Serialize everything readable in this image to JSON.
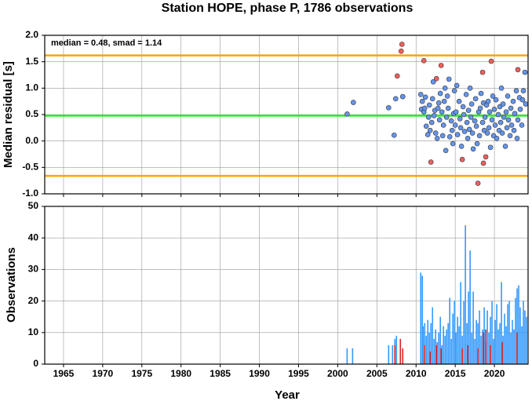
{
  "chart_data": [
    {
      "type": "scatter",
      "title": "Station HOPE, phase P, 1786 observations",
      "annotation": "median = 0.48, smad = 1.14",
      "ylabel": "Median residual [s]",
      "xlim": [
        1962.6,
        2024.3
      ],
      "ylim": [
        -1.0,
        2.0
      ],
      "xticks": [
        1965,
        1970,
        1975,
        1980,
        1985,
        1990,
        1995,
        2000,
        2005,
        2010,
        2015,
        2020
      ],
      "yticks": [
        {
          "value": -1.0,
          "label": "-1.0"
        },
        {
          "value": -0.5,
          "label": "-0.5"
        },
        {
          "value": 0.0,
          "label": "0.0"
        },
        {
          "value": 0.5,
          "label": "0.5"
        },
        {
          "value": 1.0,
          "label": "1.0"
        },
        {
          "value": 1.5,
          "label": "1.5"
        },
        {
          "value": 2.0,
          "label": "2.0"
        }
      ],
      "grid": true,
      "hlines": [
        {
          "value": 1.62,
          "color": "#ffa500"
        },
        {
          "value": -0.66,
          "color": "#ffa500"
        },
        {
          "value": 0.48,
          "color": "#22ee22"
        }
      ],
      "series": [
        {
          "color": "#6495ed",
          "x": [
            2001.2,
            2002.0,
            2006.5,
            2007.2,
            2007.4,
            2008.3,
            2010.6,
            2010.7,
            2010.8,
            2011.0,
            2011.1,
            2011.2,
            2011.3,
            2011.5,
            2011.6,
            2011.7,
            2011.8,
            2012.0,
            2012.1,
            2012.2,
            2012.3,
            2012.4,
            2012.5,
            2012.7,
            2012.8,
            2012.9,
            2013.0,
            2013.1,
            2013.3,
            2013.4,
            2013.5,
            2013.6,
            2013.7,
            2013.8,
            2013.9,
            2014.0,
            2014.1,
            2014.2,
            2014.3,
            2014.5,
            2014.6,
            2014.7,
            2014.8,
            2014.9,
            2015.0,
            2015.1,
            2015.2,
            2015.3,
            2015.5,
            2015.6,
            2015.7,
            2015.8,
            2016.0,
            2016.1,
            2016.2,
            2016.4,
            2016.5,
            2016.6,
            2016.7,
            2016.8,
            2016.9,
            2017.0,
            2017.1,
            2017.2,
            2017.3,
            2017.5,
            2017.6,
            2017.7,
            2017.8,
            2018.0,
            2018.1,
            2018.2,
            2018.3,
            2018.5,
            2018.6,
            2018.7,
            2018.8,
            2019.0,
            2019.1,
            2019.2,
            2019.3,
            2019.4,
            2019.5,
            2019.7,
            2019.8,
            2019.9,
            2020.0,
            2020.1,
            2020.2,
            2020.3,
            2020.5,
            2020.6,
            2020.7,
            2020.8,
            2020.9,
            2021.0,
            2021.1,
            2021.2,
            2021.4,
            2021.5,
            2021.6,
            2021.7,
            2021.8,
            2022.0,
            2022.1,
            2022.2,
            2022.4,
            2022.5,
            2022.6,
            2022.8,
            2022.9,
            2023.0,
            2023.2,
            2023.3,
            2023.5,
            2023.6,
            2023.7,
            2023.9,
            2024.0
          ],
          "values": [
            0.51,
            0.73,
            0.63,
            0.11,
            0.8,
            0.84,
            0.88,
            0.6,
            0.75,
            0.55,
            0.62,
            0.83,
            0.28,
            0.12,
            0.45,
            0.68,
            0.2,
            0.35,
            0.8,
            1.12,
            0.48,
            0.58,
            0.15,
            0.05,
            0.62,
            0.72,
            0.4,
            0.9,
            0.55,
            0.1,
            0.3,
            0.75,
            1.0,
            -0.18,
            0.45,
            0.85,
            0.62,
            1.17,
            0.08,
            0.38,
            0.2,
            -0.05,
            0.52,
            0.95,
            0.3,
            0.55,
            1.05,
            0.12,
            0.75,
            0.42,
            0.25,
            -0.1,
            0.65,
            0.5,
            0.18,
            0.88,
            0.35,
            0.05,
            0.58,
            0.22,
            1.0,
            0.45,
            0.7,
            0.15,
            -0.15,
            0.38,
            0.8,
            0.28,
            -0.05,
            0.55,
            0.1,
            0.62,
            0.9,
            0.35,
            0.72,
            0.2,
            0.45,
            0.68,
            0.15,
            0.75,
            0.25,
            0.55,
            -0.12,
            0.4,
            0.85,
            0.1,
            0.6,
            0.3,
            0.78,
            0.05,
            0.5,
            0.2,
            0.65,
            0.35,
            1.0,
            0.15,
            0.7,
            0.45,
            -0.1,
            0.55,
            0.25,
            0.85,
            0.4,
            0.1,
            0.62,
            0.3,
            0.75,
            0.2,
            0.52,
            0.95,
            0.05,
            0.4,
            0.82,
            0.6,
            0.3,
            0.78,
            0.95,
            1.3,
            0.7
          ]
        },
        {
          "color": "#f0605a",
          "x": [
            2007.6,
            2008.2,
            2008.1,
            2011.0,
            2011.9,
            2012.6,
            2013.2,
            2015.9,
            2017.9,
            2018.5,
            2018.9,
            2018.6,
            2019.6,
            2023.0
          ],
          "values": [
            1.23,
            1.83,
            1.7,
            1.52,
            -0.4,
            1.18,
            1.43,
            -0.35,
            -0.8,
            1.3,
            -0.3,
            -0.42,
            1.51,
            1.35
          ]
        }
      ]
    },
    {
      "type": "bar",
      "ylabel": "Observations",
      "xlabel": "Year",
      "xlim": [
        1962.6,
        2024.3
      ],
      "ylim": [
        0,
        50
      ],
      "xticks": [
        1965,
        1970,
        1975,
        1980,
        1985,
        1990,
        1995,
        2000,
        2005,
        2010,
        2015,
        2020
      ],
      "yticks": [
        0,
        10,
        20,
        30,
        40,
        50
      ],
      "grid": true,
      "series": [
        {
          "color": "#3399ff",
          "x": [
            2001.2,
            2001.9,
            2006.5,
            2007.0,
            2007.3,
            2007.5,
            2010.6,
            2010.8,
            2010.9,
            2011.1,
            2011.3,
            2011.5,
            2011.7,
            2011.9,
            2012.1,
            2012.3,
            2012.5,
            2012.7,
            2012.9,
            2013.1,
            2013.3,
            2013.5,
            2013.7,
            2013.9,
            2014.1,
            2014.3,
            2014.5,
            2014.7,
            2014.9,
            2015.1,
            2015.3,
            2015.5,
            2015.7,
            2015.9,
            2016.1,
            2016.3,
            2016.5,
            2016.7,
            2016.9,
            2017.1,
            2017.3,
            2017.5,
            2017.7,
            2017.9,
            2018.1,
            2018.3,
            2018.5,
            2018.7,
            2018.9,
            2019.1,
            2019.3,
            2019.5,
            2019.7,
            2019.9,
            2020.1,
            2020.3,
            2020.5,
            2020.7,
            2020.9,
            2021.1,
            2021.3,
            2021.5,
            2021.7,
            2021.9,
            2022.1,
            2022.3,
            2022.5,
            2022.7,
            2022.9,
            2023.1,
            2023.3,
            2023.5,
            2023.7,
            2023.9,
            2024.1
          ],
          "values": [
            5,
            5,
            6,
            6,
            8,
            9,
            29,
            28,
            12,
            13,
            9,
            14,
            10,
            13,
            18,
            8,
            11,
            7,
            10,
            15,
            6,
            12,
            9,
            11,
            13,
            21,
            8,
            16,
            20,
            10,
            15,
            12,
            26,
            9,
            20,
            44,
            13,
            23,
            36,
            10,
            23,
            8,
            14,
            13,
            17,
            9,
            11,
            18,
            7,
            17,
            10,
            15,
            20,
            8,
            14,
            19,
            11,
            13,
            26,
            9,
            16,
            12,
            19,
            20,
            10,
            14,
            11,
            21,
            24,
            25,
            18,
            12,
            20,
            17,
            15
          ]
        },
        {
          "color": "#dd2222",
          "x": [
            2007.3,
            2008.0,
            2008.3,
            2011.1,
            2011.8,
            2012.6,
            2013.2,
            2015.9,
            2016.6,
            2017.9,
            2018.6,
            2018.9,
            2019.5,
            2021.0,
            2022.9
          ],
          "values": [
            6,
            8,
            5,
            6,
            4,
            6,
            5,
            5,
            6,
            5,
            10,
            11,
            6,
            7,
            10
          ]
        }
      ]
    }
  ]
}
